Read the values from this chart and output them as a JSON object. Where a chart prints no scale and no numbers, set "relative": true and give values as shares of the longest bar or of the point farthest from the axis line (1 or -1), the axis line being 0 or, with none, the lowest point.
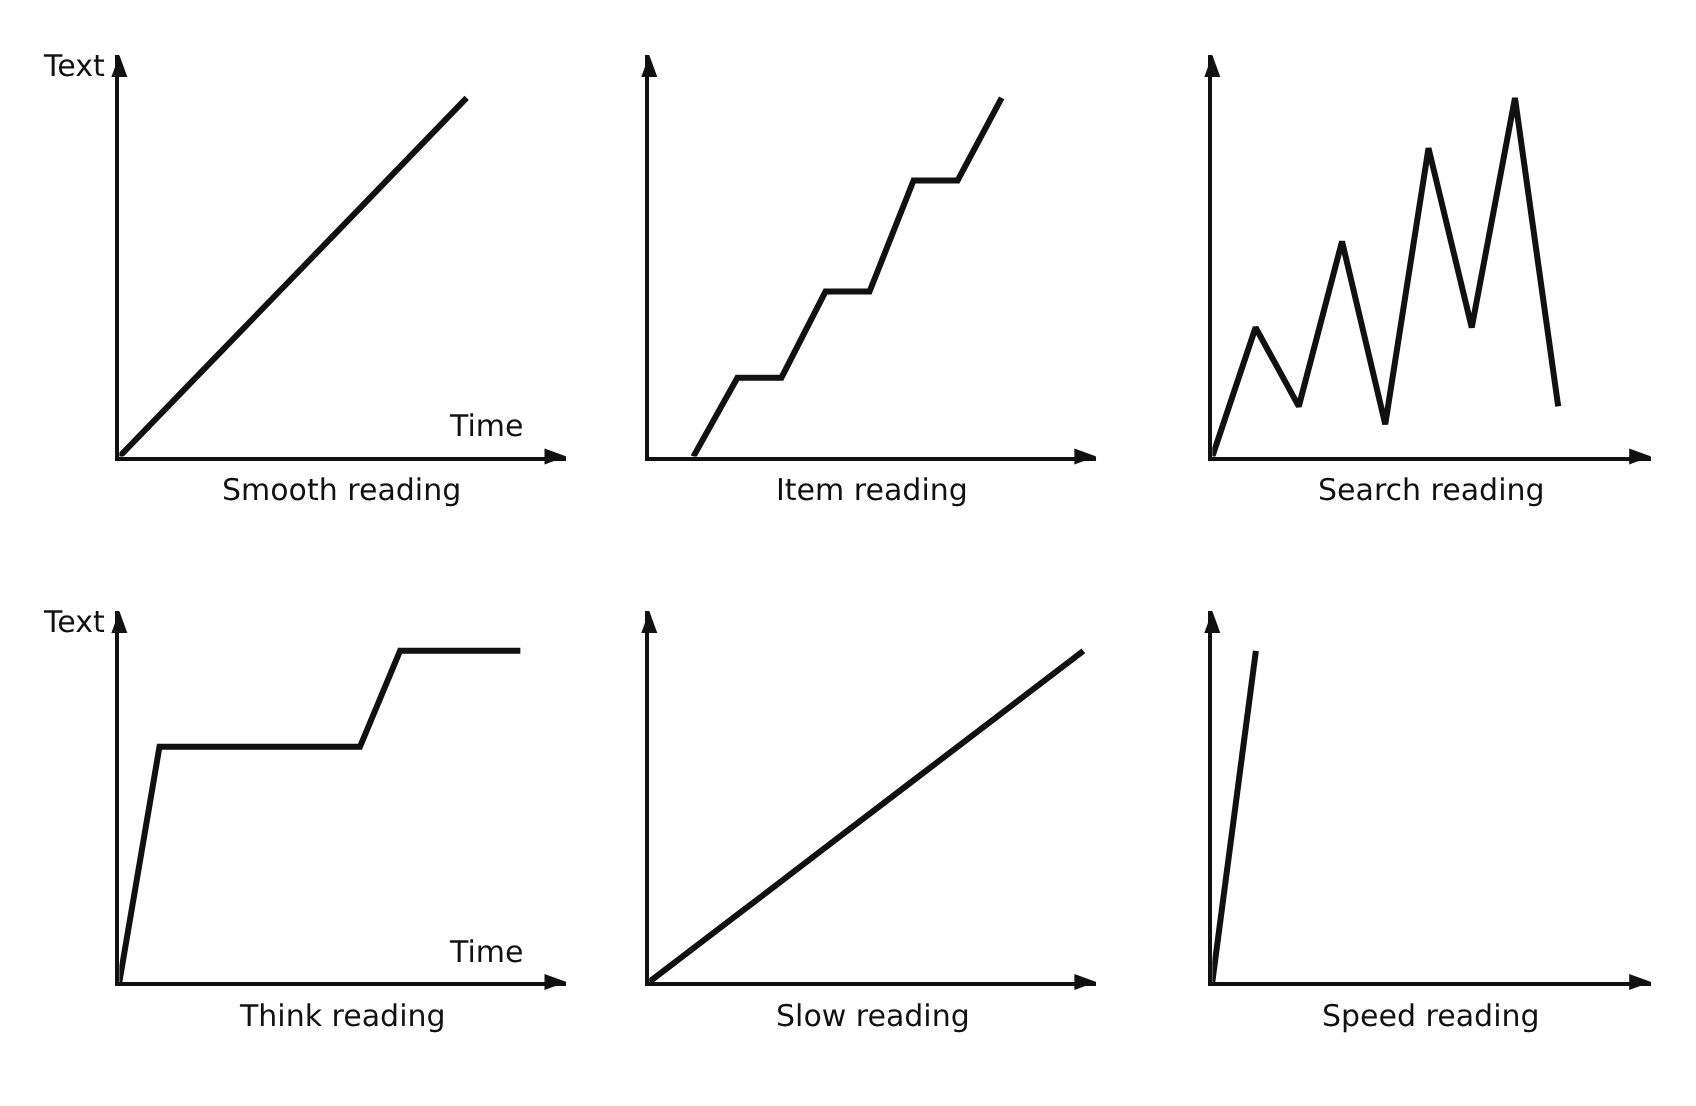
{
  "chart_data": [
    {
      "type": "line",
      "title": "Smooth reading",
      "xlabel": "Time",
      "ylabel": "Text",
      "relative": true,
      "categories": [
        null,
        null,
        null,
        null,
        null,
        null
      ],
      "series": [
        {
          "color": "#111111",
          "values": [
            0,
            0.25,
            0.5,
            0.75,
            1,
            null
          ]
        }
      ]
    },
    {
      "type": "line",
      "title": "Item reading",
      "relative": true,
      "categories": [
        null,
        null,
        null,
        null,
        null,
        null,
        null,
        null,
        null,
        null,
        null
      ],
      "series": [
        {
          "color": "#111111",
          "values": [
            null,
            0,
            0.22,
            0.22,
            0.46,
            0.46,
            0.77,
            0.77,
            1,
            null,
            null
          ]
        }
      ]
    },
    {
      "type": "line",
      "title": "Search reading",
      "relative": true,
      "categories": [
        null,
        null,
        null,
        null,
        null,
        null,
        null,
        null,
        null,
        null,
        null
      ],
      "series": [
        {
          "color": "#111111",
          "values": [
            0,
            0.36,
            0.14,
            0.6,
            0.09,
            0.86,
            0.36,
            1,
            0.14,
            null,
            null
          ]
        }
      ]
    },
    {
      "type": "line",
      "title": "Think reading",
      "xlabel": "Time",
      "ylabel": "Text",
      "relative": true,
      "categories": [
        null,
        null,
        null,
        null,
        null,
        null,
        null,
        null,
        null,
        null,
        null,
        null
      ],
      "series": [
        {
          "color": "#111111",
          "values": [
            0,
            0.71,
            0.71,
            0.71,
            0.71,
            0.71,
            0.71,
            1,
            1,
            1,
            1,
            null
          ]
        }
      ]
    },
    {
      "type": "line",
      "title": "Slow reading",
      "relative": true,
      "categories": [
        null,
        null,
        null,
        null,
        null,
        null
      ],
      "series": [
        {
          "color": "#111111",
          "values": [
            0,
            0.2,
            0.4,
            0.6,
            0.8,
            1
          ]
        }
      ]
    },
    {
      "type": "line",
      "title": "Speed reading",
      "relative": true,
      "categories": [
        null,
        null,
        null,
        null,
        null,
        null,
        null,
        null,
        null,
        null,
        null,
        null,
        null,
        null,
        null,
        null,
        null,
        null,
        null,
        null,
        null
      ],
      "series": [
        {
          "color": "#111111",
          "values": [
            0,
            0.5,
            1,
            null,
            null,
            null,
            null,
            null,
            null,
            null,
            null,
            null,
            null,
            null,
            null,
            null,
            null,
            null,
            null,
            null,
            null
          ]
        }
      ]
    }
  ]
}
